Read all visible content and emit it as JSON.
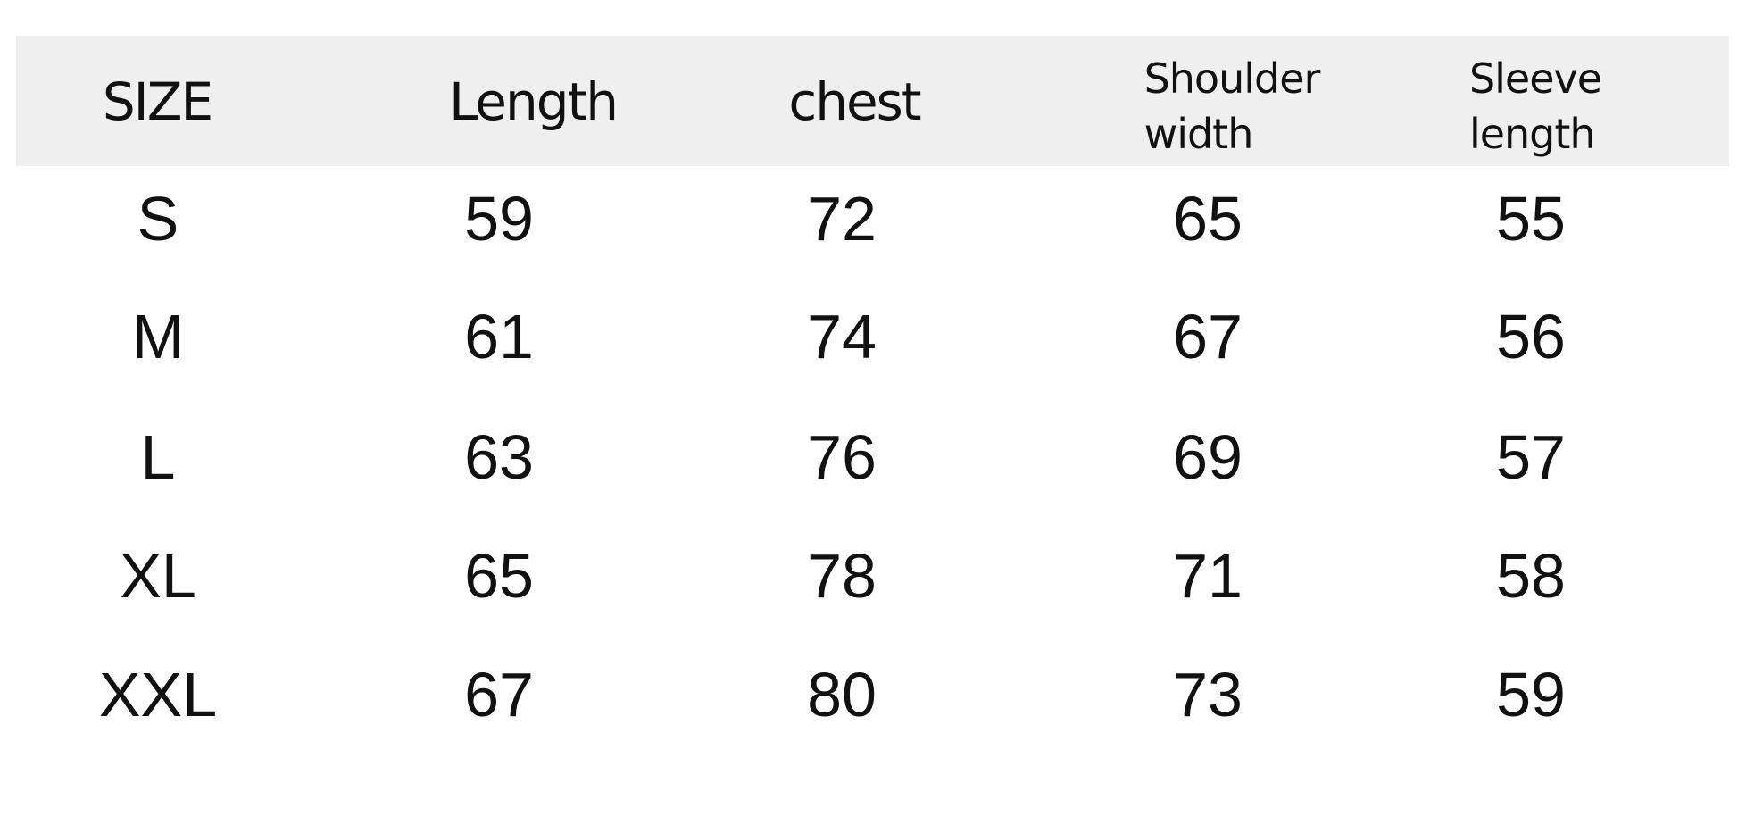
{
  "table": {
    "headers": [
      "SIZE",
      "Length",
      "chest",
      "Shoulder width",
      "Sleeve length"
    ],
    "header_lines": [
      [
        "SIZE"
      ],
      [
        "Length"
      ],
      [
        "chest"
      ],
      [
        "Shoulder",
        "width"
      ],
      [
        "Sleeve",
        "length"
      ]
    ],
    "rows": [
      [
        "S",
        "59",
        "72",
        "65",
        "55"
      ],
      [
        "M",
        "61",
        "74",
        "67",
        "56"
      ],
      [
        "L",
        "63",
        "76",
        "69",
        "57"
      ],
      [
        "XL",
        "65",
        "78",
        "71",
        "58"
      ],
      [
        "XXL",
        "67",
        "80",
        "73",
        "59"
      ]
    ],
    "header_bg": "#efefef"
  }
}
